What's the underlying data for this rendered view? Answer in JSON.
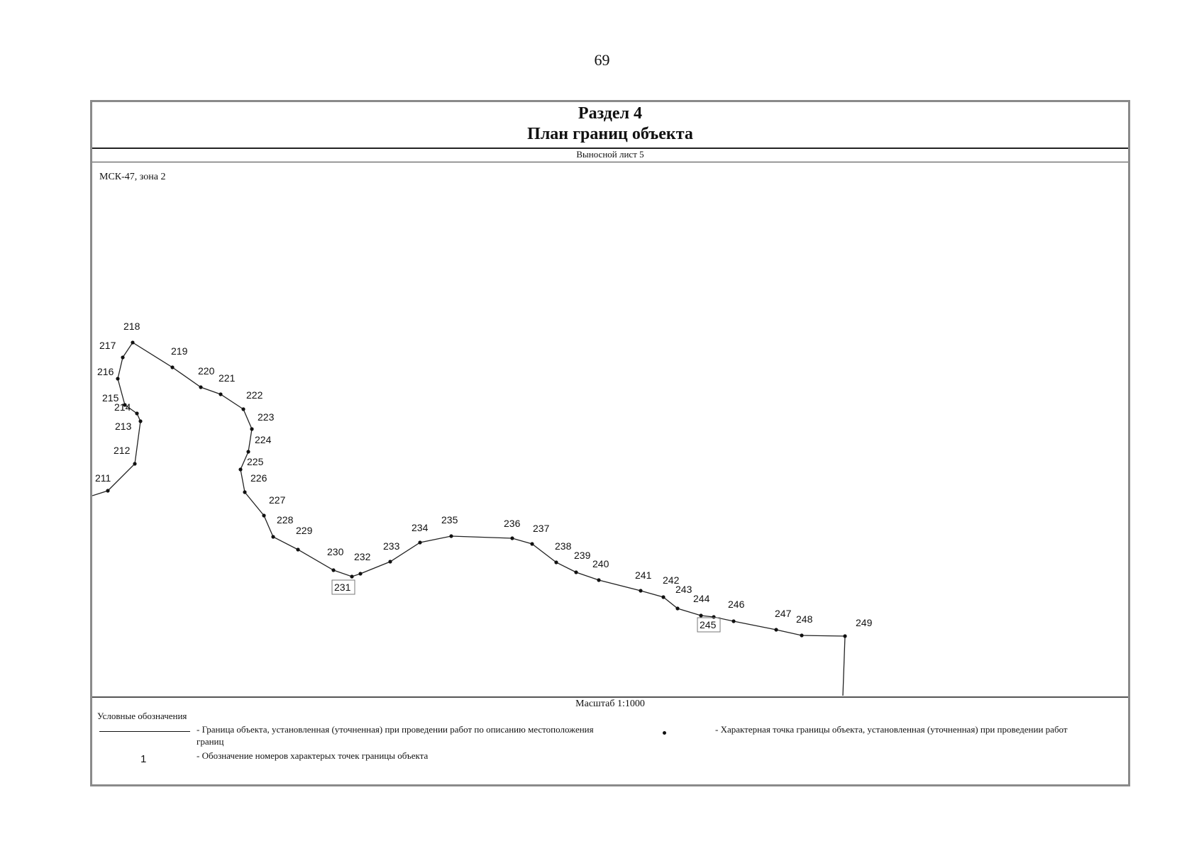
{
  "page_number": "69",
  "header": {
    "title_line1": "Раздел 4",
    "title_line2": "План границ объекта"
  },
  "sheet_label": "Выносной лист 5",
  "coordinate_system": "МСК-47, зона 2",
  "scale_label": "Масштаб 1:1000",
  "legend": {
    "title": "Условные обозначения",
    "boundary_line_text": "- Граница объекта, установленная (уточненная) при проведении работ по описанию местоположения границ",
    "point_text": "- Характерная точка границы объекта, установленная (уточненная) при проведении работ",
    "number_sample": "1",
    "number_text": "- Обозначение номеров характерых точек границы объекта"
  },
  "boundary_points": [
    {
      "id": "211"
    },
    {
      "id": "212"
    },
    {
      "id": "213"
    },
    {
      "id": "214"
    },
    {
      "id": "215"
    },
    {
      "id": "216"
    },
    {
      "id": "217"
    },
    {
      "id": "218"
    },
    {
      "id": "219"
    },
    {
      "id": "220"
    },
    {
      "id": "221"
    },
    {
      "id": "222"
    },
    {
      "id": "223"
    },
    {
      "id": "224"
    },
    {
      "id": "225"
    },
    {
      "id": "226"
    },
    {
      "id": "227"
    },
    {
      "id": "228"
    },
    {
      "id": "229"
    },
    {
      "id": "230"
    },
    {
      "id": "231"
    },
    {
      "id": "232"
    },
    {
      "id": "233"
    },
    {
      "id": "234"
    },
    {
      "id": "235"
    },
    {
      "id": "236"
    },
    {
      "id": "237"
    },
    {
      "id": "238"
    },
    {
      "id": "239"
    },
    {
      "id": "240"
    },
    {
      "id": "241"
    },
    {
      "id": "242"
    },
    {
      "id": "243"
    },
    {
      "id": "244"
    },
    {
      "id": "245"
    },
    {
      "id": "246"
    },
    {
      "id": "247"
    },
    {
      "id": "248"
    },
    {
      "id": "249"
    }
  ]
}
